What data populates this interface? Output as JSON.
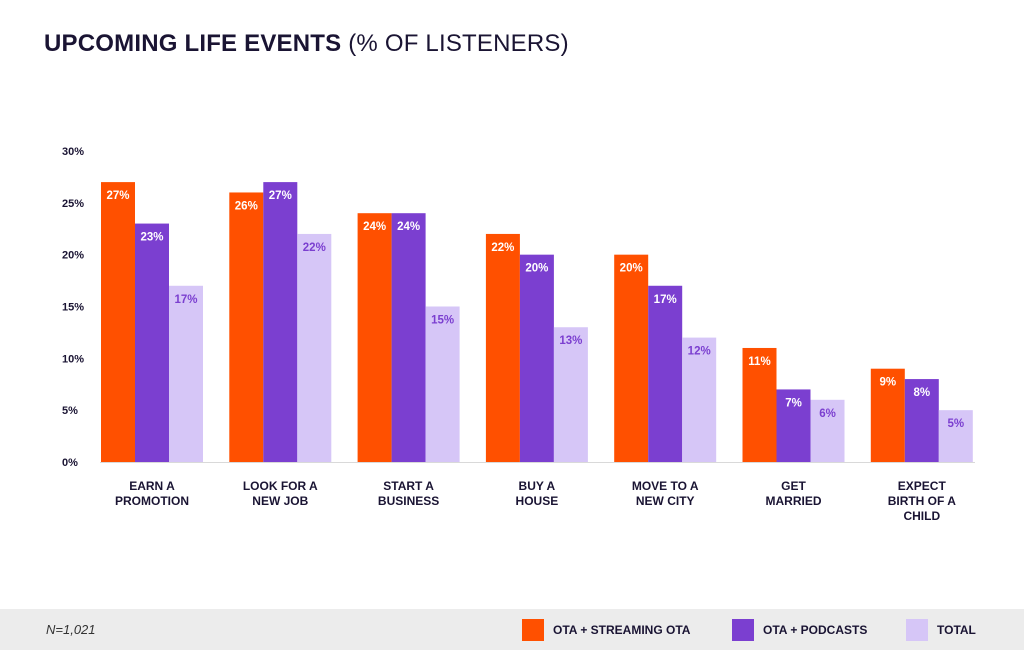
{
  "title": {
    "bold": "UPCOMING LIFE EVENTS",
    "light": "(% OF LISTENERS)"
  },
  "footer": {
    "note": "N=1,021"
  },
  "colors": {
    "series1": "#ff5000",
    "series2": "#7b3fd0",
    "series3": "#d6c6f7",
    "label_light": "#7b3fd0",
    "label_dark": "#ffffff"
  },
  "chart_data": {
    "type": "bar",
    "categories": [
      [
        "EARN A",
        "PROMOTION"
      ],
      [
        "LOOK FOR A",
        "NEW JOB"
      ],
      [
        "START A",
        "BUSINESS"
      ],
      [
        "BUY A",
        "HOUSE"
      ],
      [
        "MOVE TO A",
        "NEW CITY"
      ],
      [
        "GET",
        "MARRIED"
      ],
      [
        "EXPECT",
        "BIRTH OF A",
        "CHILD"
      ]
    ],
    "series": [
      {
        "name": "OTA + STREAMING OTA",
        "values": [
          27,
          26,
          24,
          22,
          20,
          11,
          9
        ]
      },
      {
        "name": "OTA + PODCASTS",
        "values": [
          23,
          27,
          24,
          20,
          17,
          7,
          8
        ]
      },
      {
        "name": "TOTAL",
        "values": [
          17,
          22,
          15,
          13,
          12,
          6,
          5
        ]
      }
    ],
    "ylim": [
      0,
      30
    ],
    "yticks": [
      "0%",
      "5%",
      "10%",
      "15%",
      "20%",
      "25%",
      "30%"
    ],
    "grid": false,
    "legend": "bottom-right"
  }
}
